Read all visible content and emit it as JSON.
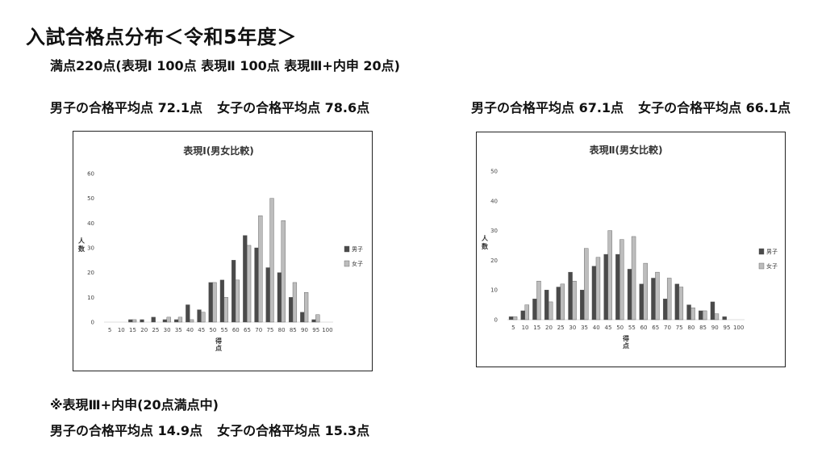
{
  "heading": {
    "title": "入試合格点分布＜令和5年度＞",
    "full_score": "満点220点(表現Ⅰ 100点 表現Ⅱ 100点 表現Ⅲ+内申 20点)"
  },
  "averages": {
    "hyogen1": {
      "boys": "男子の合格平均点 72.1点",
      "girls": "女子の合格平均点 78.6点"
    },
    "hyogen2": {
      "boys": "男子の合格平均点 67.1点",
      "girls": "女子の合格平均点 66.1点"
    },
    "hyogen3_note": "※表現Ⅲ+内申(20点満点中)",
    "hyogen3": {
      "boys": "男子の合格平均点 14.9点",
      "girls": "女子の合格平均点 15.3点"
    }
  },
  "chart_data": [
    {
      "type": "bar",
      "title": "表現Ⅰ(男女比較)",
      "ylabel": "人数",
      "xlabel": "得点",
      "ylim": [
        0,
        60
      ],
      "yticks": [
        0,
        10,
        20,
        30,
        40,
        50,
        60
      ],
      "categories": [
        "5",
        "10",
        "15",
        "20",
        "25",
        "30",
        "35",
        "40",
        "45",
        "50",
        "55",
        "60",
        "65",
        "70",
        "75",
        "80",
        "85",
        "90",
        "95",
        "100"
      ],
      "legend_position": "right",
      "series": [
        {
          "name": "男子",
          "color": "#4a4a4a",
          "values": [
            0,
            0,
            1,
            1,
            2,
            1,
            1,
            7,
            5,
            16,
            17,
            25,
            35,
            30,
            22,
            20,
            10,
            4,
            1,
            0
          ]
        },
        {
          "name": "女子",
          "color": "#bdbdbd",
          "values": [
            0,
            0,
            1,
            0,
            0,
            2,
            2,
            1,
            4,
            16,
            10,
            17,
            31,
            43,
            50,
            41,
            16,
            12,
            3,
            0
          ]
        }
      ]
    },
    {
      "type": "bar",
      "title": "表現Ⅱ(男女比較)",
      "ylabel": "人数",
      "xlabel": "得点",
      "ylim": [
        0,
        50
      ],
      "yticks": [
        0,
        10,
        20,
        30,
        40,
        50
      ],
      "categories": [
        "5",
        "10",
        "15",
        "20",
        "25",
        "30",
        "35",
        "40",
        "45",
        "50",
        "55",
        "60",
        "65",
        "70",
        "75",
        "80",
        "85",
        "90",
        "95",
        "100"
      ],
      "legend_position": "right",
      "series": [
        {
          "name": "男子",
          "color": "#4a4a4a",
          "values": [
            1,
            3,
            7,
            10,
            11,
            16,
            10,
            18,
            22,
            22,
            17,
            12,
            14,
            7,
            12,
            5,
            3,
            6,
            1,
            0
          ]
        },
        {
          "name": "女子",
          "color": "#bdbdbd",
          "values": [
            1,
            5,
            13,
            6,
            12,
            13,
            24,
            21,
            30,
            27,
            28,
            19,
            16,
            14,
            11,
            4,
            3,
            2,
            0,
            0
          ]
        }
      ]
    }
  ]
}
